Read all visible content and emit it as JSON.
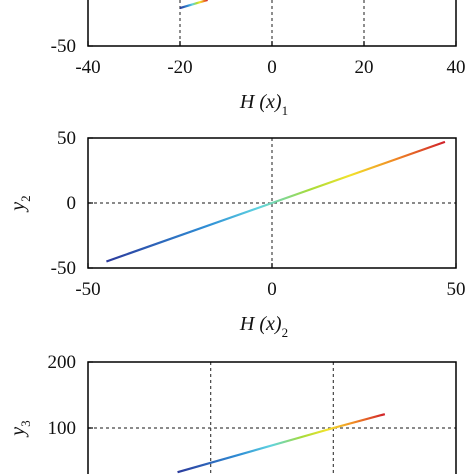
{
  "chart_data": [
    {
      "type": "line",
      "xlabel": "H (x)",
      "xlabel_sub": "1",
      "xlim": [
        -40,
        40
      ],
      "xticks": [
        -40,
        -20,
        0,
        20,
        40
      ],
      "ylim": [
        -50,
        50
      ],
      "yticks": [
        -50
      ],
      "vlines": [
        -20,
        0,
        20
      ],
      "hlines": [
        0
      ],
      "colormap": "jet",
      "series": [
        {
          "x": [
            -20,
            -14
          ],
          "y": [
            -20.8,
            -14.6
          ]
        }
      ]
    },
    {
      "type": "line",
      "xlabel": "H (x)",
      "xlabel_sub": "2",
      "ylabel": "y",
      "ylabel_sub": "2",
      "xlim": [
        -50,
        50
      ],
      "xticks": [
        -50,
        0,
        50
      ],
      "ylim": [
        -50,
        50
      ],
      "yticks": [
        -50,
        0,
        50
      ],
      "vlines": [
        0
      ],
      "hlines": [
        0
      ],
      "colormap": "jet",
      "series": [
        {
          "x": [
            -45,
            0,
            47
          ],
          "y": [
            -45,
            0,
            47
          ]
        }
      ]
    },
    {
      "type": "line",
      "ylabel": "y",
      "ylabel_sub": "3",
      "xlim": [
        -100,
        200
      ],
      "ylim": [
        0,
        200
      ],
      "yticks": [
        100,
        200
      ],
      "vlines": [
        0,
        100
      ],
      "hlines": [
        100
      ],
      "colormap": "jet",
      "series": [
        {
          "x": [
            -27,
            100,
            142
          ],
          "y": [
            33,
            100,
            121
          ]
        }
      ]
    }
  ]
}
